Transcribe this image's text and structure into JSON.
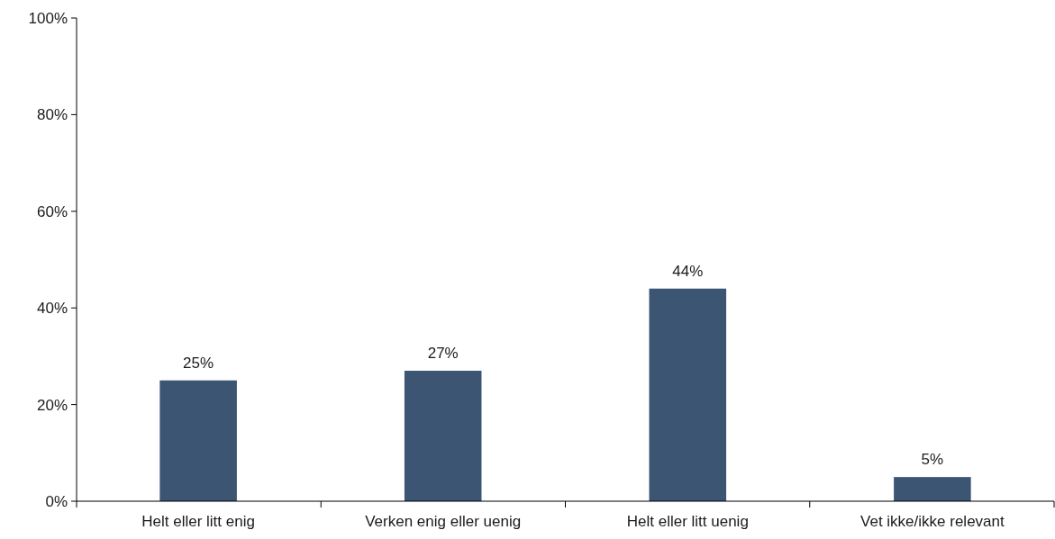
{
  "chart_data": {
    "type": "bar",
    "categories": [
      "Helt eller litt enig",
      "Verken enig eller uenig",
      "Helt eller litt uenig",
      "Vet ikke/ikke relevant"
    ],
    "values": [
      25,
      27,
      44,
      5
    ],
    "value_labels": [
      "25%",
      "27%",
      "44%",
      "5%"
    ],
    "color": "#3b5573",
    "ylim": [
      0,
      100
    ],
    "yticks": [
      {
        "value": 0,
        "label": "0%"
      },
      {
        "value": 20,
        "label": "20%"
      },
      {
        "value": 40,
        "label": "40%"
      },
      {
        "value": 60,
        "label": "60%"
      },
      {
        "value": 80,
        "label": "80%"
      },
      {
        "value": 100,
        "label": "100%"
      }
    ],
    "grid": false
  }
}
